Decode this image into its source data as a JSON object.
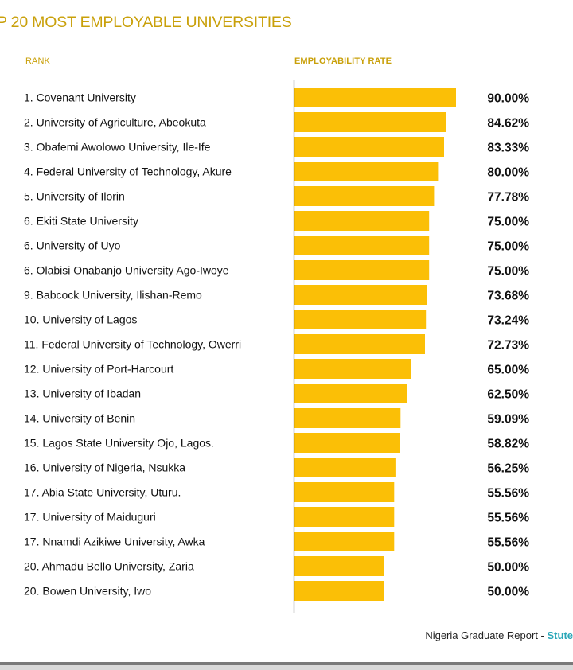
{
  "colors": {
    "accent": "#c9a00a",
    "bar": "#fbbf06",
    "text": "#111111",
    "brand": "#2aa7b8"
  },
  "chart_data": {
    "type": "bar",
    "orientation": "horizontal",
    "title": "P 20 MOST EMPLOYABLE UNIVERSITIES",
    "xlabel": "EMPLOYABILITY RATE",
    "ylabel": "RANK",
    "xlim": [
      0,
      90
    ],
    "grid": false,
    "legend": "none",
    "categories": [
      "1. Covenant University",
      "2. University of Agriculture, Abeokuta",
      "3. Obafemi Awolowo University, Ile-Ife",
      "4. Federal University of Technology, Akure",
      "5. University of Ilorin",
      "6. Ekiti State University",
      "6. University of Uyo",
      "6. Olabisi Onabanjo University Ago-Iwoye",
      "9. Babcock University, Ilishan-Remo",
      "10. University of Lagos",
      "11. Federal University of Technology, Owerri",
      "12. University of Port-Harcourt",
      "13. University of Ibadan",
      "14. University of Benin",
      "15. Lagos State University Ojo, Lagos.",
      "16. University of Nigeria, Nsukka",
      "17. Abia State University, Uturu.",
      "17. University of Maiduguri",
      "17. Nnamdi Azikiwe University, Awka",
      "20. Ahmadu Bello University, Zaria",
      "20. Bowen University, Iwo"
    ],
    "values": [
      90.0,
      84.62,
      83.33,
      80.0,
      77.78,
      75.0,
      75.0,
      75.0,
      73.68,
      73.24,
      72.73,
      65.0,
      62.5,
      59.09,
      58.82,
      56.25,
      55.56,
      55.56,
      55.56,
      50.0,
      50.0
    ],
    "value_labels": [
      "90.00%",
      "84.62%",
      "83.33%",
      "80.00%",
      "77.78%",
      "75.00%",
      "75.00%",
      "75.00%",
      "73.68%",
      "73.24%",
      "72.73%",
      "65.00%",
      "62.50%",
      "59.09%",
      "58.82%",
      "56.25%",
      "55.56%",
      "55.56%",
      "55.56%",
      "50.00%",
      "50.00%"
    ]
  },
  "source": {
    "text": "Nigeria Graduate Report - ",
    "brand": "Stute"
  }
}
